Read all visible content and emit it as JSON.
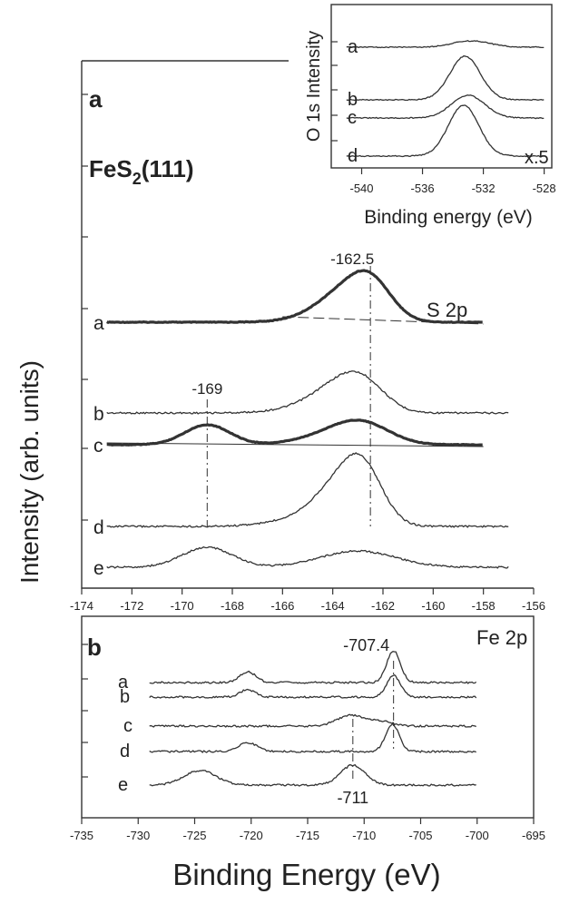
{
  "chart_data": [
    {
      "id": "panel-a",
      "type": "line",
      "panel_label": "a",
      "sample": "FeS",
      "sample_subscript": "2",
      "sample_suffix": "(111)",
      "region_label": "S 2p",
      "ylabel": "Intensity (arb. units)",
      "xlim": [
        -174,
        -156
      ],
      "xticks": [
        -174,
        -172,
        -170,
        -168,
        -166,
        -164,
        -162,
        -160,
        -158,
        -156
      ],
      "annotations": [
        {
          "text": "-162.5",
          "x": -162.5
        },
        {
          "text": "-169",
          "x": -169
        }
      ],
      "series": [
        {
          "name": "a",
          "baseline_y": 355,
          "x_start": -173,
          "x_end": -158,
          "thick": true,
          "peaks": [
            {
              "center": -162.5,
              "sigma": 0.85,
              "amp": 42
            },
            {
              "center": -163.7,
              "sigma": 1.0,
              "amp": 24
            },
            {
              "center": -164.6,
              "sigma": 1.2,
              "amp": 4
            }
          ]
        },
        {
          "name": "b",
          "baseline_y": 455,
          "x_start": -173,
          "x_end": -157,
          "thick": false,
          "peaks": [
            {
              "center": -162.8,
              "sigma": 0.9,
              "amp": 30
            },
            {
              "center": -163.9,
              "sigma": 1.0,
              "amp": 20
            },
            {
              "center": -164.8,
              "sigma": 1.3,
              "amp": 6
            }
          ]
        },
        {
          "name": "c",
          "baseline_y": 490,
          "x_start": -173,
          "x_end": -158,
          "thick": true,
          "peaks": [
            {
              "center": -169,
              "sigma": 0.9,
              "amp": 22
            },
            {
              "center": -162.8,
              "sigma": 1.1,
              "amp": 20
            },
            {
              "center": -164.0,
              "sigma": 1.3,
              "amp": 10
            }
          ]
        },
        {
          "name": "d",
          "baseline_y": 580,
          "x_start": -173,
          "x_end": -157,
          "thick": false,
          "peaks": [
            {
              "center": -162.8,
              "sigma": 0.8,
              "amp": 54
            },
            {
              "center": -163.8,
              "sigma": 1.0,
              "amp": 34
            },
            {
              "center": -165.0,
              "sigma": 1.4,
              "amp": 8
            }
          ]
        },
        {
          "name": "e",
          "baseline_y": 625,
          "x_start": -173,
          "x_end": -157,
          "thick": false,
          "peaks": [
            {
              "center": -169,
              "sigma": 1.0,
              "amp": 22
            },
            {
              "center": -163.0,
              "sigma": 1.5,
              "amp": 18
            }
          ]
        }
      ]
    },
    {
      "id": "panel-b",
      "type": "line",
      "panel_label": "b",
      "region_label": "Fe 2p",
      "xlabel": "Binding Energy (eV)",
      "xlim": [
        -735,
        -695
      ],
      "xticks": [
        -735,
        -730,
        -725,
        -720,
        -715,
        -710,
        -705,
        -700,
        -695
      ],
      "annotations": [
        {
          "text": "-707.4",
          "x": -707.4
        },
        {
          "text": "-711",
          "x": -711
        }
      ],
      "series": [
        {
          "name": "a",
          "baseline_y": 752,
          "x_start": -729,
          "x_end": -700,
          "peaks": [
            {
              "center": -707.4,
              "sigma": 0.6,
              "amp": 35
            },
            {
              "center": -720.3,
              "sigma": 0.7,
              "amp": 12
            }
          ]
        },
        {
          "name": "b",
          "baseline_y": 768,
          "x_start": -729,
          "x_end": -700,
          "peaks": [
            {
              "center": -707.4,
              "sigma": 0.6,
              "amp": 24
            },
            {
              "center": -720.3,
              "sigma": 0.7,
              "amp": 8
            }
          ]
        },
        {
          "name": "c",
          "baseline_y": 800,
          "x_start": -729,
          "x_end": -700,
          "peaks": [
            {
              "center": -711.2,
              "sigma": 1.2,
              "amp": 12
            },
            {
              "center": -708.5,
              "sigma": 1.0,
              "amp": 5
            }
          ]
        },
        {
          "name": "d",
          "baseline_y": 828,
          "x_start": -729,
          "x_end": -700,
          "peaks": [
            {
              "center": -707.5,
              "sigma": 0.6,
              "amp": 30
            },
            {
              "center": -720.3,
              "sigma": 0.8,
              "amp": 10
            }
          ]
        },
        {
          "name": "e",
          "baseline_y": 865,
          "x_start": -729,
          "x_end": -700,
          "peaks": [
            {
              "center": -711.0,
              "sigma": 1.1,
              "amp": 22
            },
            {
              "center": -724.5,
              "sigma": 1.4,
              "amp": 16
            }
          ]
        }
      ]
    },
    {
      "id": "inset-o1s",
      "type": "line",
      "ylabel": "O 1s Intensity",
      "xlabel": "Binding energy (eV)",
      "scale_note": "x.5",
      "xlim": [
        -542,
        -527.5
      ],
      "xticks": [
        -540,
        -536,
        -532,
        -528
      ],
      "series": [
        {
          "name": "a",
          "baseline_y": 52,
          "x_start": -541,
          "x_end": -528,
          "peaks": [
            {
              "center": -532.8,
              "sigma": 1.2,
              "amp": 7
            }
          ]
        },
        {
          "name": "b",
          "baseline_y": 110,
          "x_start": -541,
          "x_end": -528,
          "peaks": [
            {
              "center": -533.2,
              "sigma": 1.0,
              "amp": 48
            }
          ]
        },
        {
          "name": "c",
          "baseline_y": 130,
          "x_start": -541,
          "x_end": -528,
          "peaks": [
            {
              "center": -533.0,
              "sigma": 1.1,
              "amp": 25
            }
          ]
        },
        {
          "name": "d",
          "baseline_y": 172,
          "x_start": -541,
          "x_end": -528,
          "peaks": [
            {
              "center": -533.3,
              "sigma": 1.0,
              "amp": 56
            }
          ]
        }
      ]
    }
  ]
}
